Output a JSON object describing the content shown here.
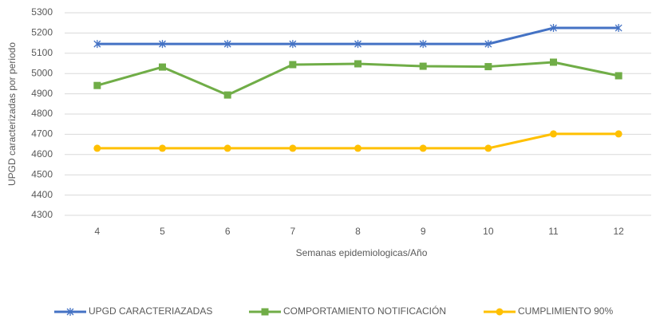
{
  "chart_data": {
    "type": "line",
    "x_label": "Semanas epidemiologicas/Año",
    "y_label": "UPGD caracterizadas por periodo",
    "categories": [
      "4",
      "5",
      "6",
      "7",
      "8",
      "9",
      "10",
      "11",
      "12"
    ],
    "series": [
      {
        "name": "UPGD CARACTERIAZADAS",
        "color": "#4472c4",
        "marker": "star",
        "values": [
          5146,
          5146,
          5146,
          5146,
          5146,
          5146,
          5146,
          5225,
          5225
        ]
      },
      {
        "name": "COMPORTAMIENTO NOTIFICACIÓN",
        "color": "#70ad47",
        "marker": "square",
        "values": [
          4941,
          5032,
          4894,
          5044,
          5048,
          5036,
          5034,
          5056,
          4989
        ]
      },
      {
        "name": "CUMPLIMIENTO 90%",
        "color": "#ffc000",
        "marker": "circle",
        "values": [
          4631,
          4631,
          4631,
          4631,
          4631,
          4631,
          4631,
          4702,
          4702
        ]
      }
    ],
    "ylim": [
      4300,
      5300
    ],
    "yticks": [
      4300,
      4400,
      4500,
      4600,
      4700,
      4800,
      4900,
      5000,
      5100,
      5200,
      5300
    ],
    "grid": true,
    "legend": "bottom"
  }
}
